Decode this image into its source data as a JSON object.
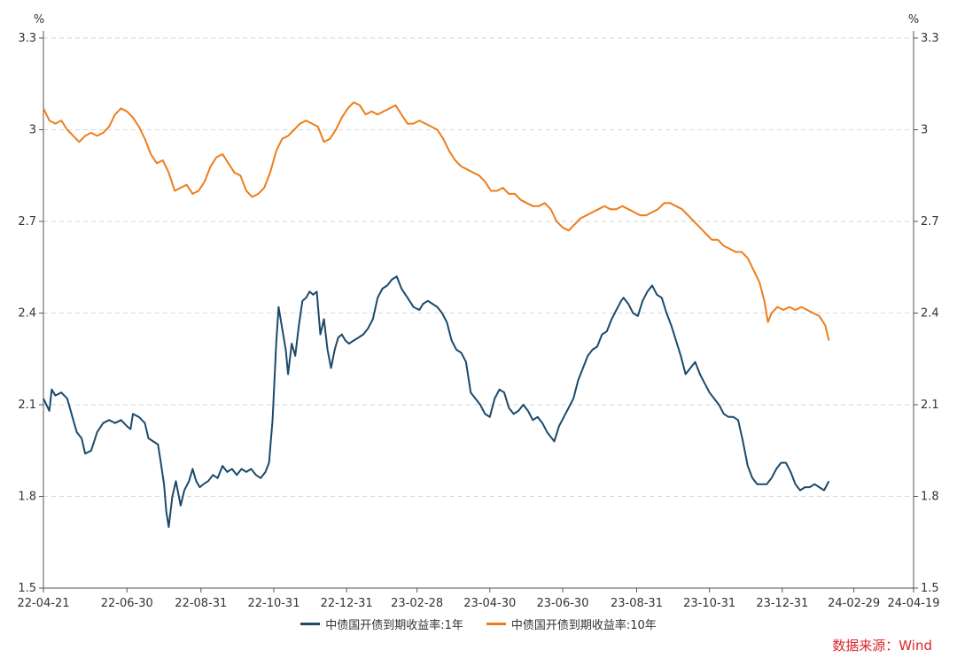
{
  "chart_data": {
    "type": "line",
    "y_unit": "%",
    "ylim": [
      1.5,
      3.3
    ],
    "y_ticks": [
      "1.5",
      "1.8",
      "2.1",
      "2.4",
      "2.7",
      "3",
      "3.3"
    ],
    "x_tick_labels": [
      "22-04-21",
      "22-06-30",
      "22-08-31",
      "22-10-31",
      "22-12-31",
      "23-02-28",
      "23-04-30",
      "23-06-30",
      "23-08-31",
      "23-10-31",
      "23-12-31",
      "24-02-29",
      "24-04-19"
    ],
    "x_tick_positions": [
      0,
      70,
      132,
      193,
      254,
      313,
      374,
      435,
      497,
      558,
      619,
      679,
      729
    ],
    "x_range": [
      0,
      729
    ],
    "series": [
      {
        "name": "中债国开债到期收益率:1年",
        "color": "#1b4a6b",
        "points": [
          [
            0,
            2.12
          ],
          [
            5,
            2.08
          ],
          [
            7,
            2.15
          ],
          [
            10,
            2.13
          ],
          [
            15,
            2.14
          ],
          [
            20,
            2.12
          ],
          [
            25,
            2.05
          ],
          [
            28,
            2.01
          ],
          [
            32,
            1.99
          ],
          [
            35,
            1.94
          ],
          [
            40,
            1.95
          ],
          [
            45,
            2.01
          ],
          [
            50,
            2.04
          ],
          [
            55,
            2.05
          ],
          [
            60,
            2.04
          ],
          [
            65,
            2.05
          ],
          [
            70,
            2.03
          ],
          [
            73,
            2.02
          ],
          [
            75,
            2.07
          ],
          [
            80,
            2.06
          ],
          [
            85,
            2.04
          ],
          [
            88,
            1.99
          ],
          [
            92,
            1.98
          ],
          [
            96,
            1.97
          ],
          [
            98,
            1.92
          ],
          [
            101,
            1.84
          ],
          [
            103,
            1.75
          ],
          [
            105,
            1.7
          ],
          [
            108,
            1.8
          ],
          [
            111,
            1.85
          ],
          [
            115,
            1.77
          ],
          [
            118,
            1.82
          ],
          [
            122,
            1.85
          ],
          [
            125,
            1.89
          ],
          [
            128,
            1.85
          ],
          [
            131,
            1.83
          ],
          [
            134,
            1.84
          ],
          [
            138,
            1.85
          ],
          [
            142,
            1.87
          ],
          [
            146,
            1.86
          ],
          [
            150,
            1.9
          ],
          [
            154,
            1.88
          ],
          [
            158,
            1.89
          ],
          [
            162,
            1.87
          ],
          [
            166,
            1.89
          ],
          [
            170,
            1.88
          ],
          [
            174,
            1.89
          ],
          [
            178,
            1.87
          ],
          [
            182,
            1.86
          ],
          [
            186,
            1.88
          ],
          [
            189,
            1.91
          ],
          [
            192,
            2.05
          ],
          [
            195,
            2.3
          ],
          [
            197,
            2.42
          ],
          [
            200,
            2.35
          ],
          [
            203,
            2.28
          ],
          [
            205,
            2.2
          ],
          [
            208,
            2.3
          ],
          [
            211,
            2.26
          ],
          [
            214,
            2.36
          ],
          [
            217,
            2.44
          ],
          [
            220,
            2.45
          ],
          [
            223,
            2.47
          ],
          [
            226,
            2.46
          ],
          [
            229,
            2.47
          ],
          [
            232,
            2.33
          ],
          [
            235,
            2.38
          ],
          [
            238,
            2.28
          ],
          [
            241,
            2.22
          ],
          [
            244,
            2.28
          ],
          [
            247,
            2.32
          ],
          [
            250,
            2.33
          ],
          [
            253,
            2.31
          ],
          [
            256,
            2.3
          ],
          [
            260,
            2.31
          ],
          [
            264,
            2.32
          ],
          [
            268,
            2.33
          ],
          [
            272,
            2.35
          ],
          [
            276,
            2.38
          ],
          [
            280,
            2.45
          ],
          [
            284,
            2.48
          ],
          [
            288,
            2.49
          ],
          [
            292,
            2.51
          ],
          [
            296,
            2.52
          ],
          [
            300,
            2.48
          ],
          [
            305,
            2.45
          ],
          [
            310,
            2.42
          ],
          [
            315,
            2.41
          ],
          [
            318,
            2.43
          ],
          [
            322,
            2.44
          ],
          [
            326,
            2.43
          ],
          [
            330,
            2.42
          ],
          [
            334,
            2.4
          ],
          [
            338,
            2.37
          ],
          [
            342,
            2.31
          ],
          [
            346,
            2.28
          ],
          [
            350,
            2.27
          ],
          [
            354,
            2.24
          ],
          [
            358,
            2.14
          ],
          [
            362,
            2.12
          ],
          [
            366,
            2.1
          ],
          [
            370,
            2.07
          ],
          [
            374,
            2.06
          ],
          [
            378,
            2.12
          ],
          [
            382,
            2.15
          ],
          [
            386,
            2.14
          ],
          [
            390,
            2.09
          ],
          [
            394,
            2.07
          ],
          [
            398,
            2.08
          ],
          [
            402,
            2.1
          ],
          [
            406,
            2.08
          ],
          [
            410,
            2.05
          ],
          [
            414,
            2.06
          ],
          [
            418,
            2.04
          ],
          [
            422,
            2.01
          ],
          [
            426,
            1.99
          ],
          [
            428,
            1.98
          ],
          [
            432,
            2.03
          ],
          [
            436,
            2.06
          ],
          [
            440,
            2.09
          ],
          [
            444,
            2.12
          ],
          [
            448,
            2.18
          ],
          [
            452,
            2.22
          ],
          [
            456,
            2.26
          ],
          [
            460,
            2.28
          ],
          [
            464,
            2.29
          ],
          [
            468,
            2.33
          ],
          [
            472,
            2.34
          ],
          [
            476,
            2.38
          ],
          [
            480,
            2.41
          ],
          [
            484,
            2.44
          ],
          [
            486,
            2.45
          ],
          [
            490,
            2.43
          ],
          [
            494,
            2.4
          ],
          [
            498,
            2.39
          ],
          [
            502,
            2.44
          ],
          [
            506,
            2.47
          ],
          [
            510,
            2.49
          ],
          [
            514,
            2.46
          ],
          [
            518,
            2.45
          ],
          [
            522,
            2.4
          ],
          [
            526,
            2.36
          ],
          [
            530,
            2.31
          ],
          [
            534,
            2.26
          ],
          [
            538,
            2.2
          ],
          [
            542,
            2.22
          ],
          [
            546,
            2.24
          ],
          [
            550,
            2.2
          ],
          [
            554,
            2.17
          ],
          [
            558,
            2.14
          ],
          [
            562,
            2.12
          ],
          [
            566,
            2.1
          ],
          [
            570,
            2.07
          ],
          [
            574,
            2.06
          ],
          [
            578,
            2.06
          ],
          [
            582,
            2.05
          ],
          [
            586,
            1.98
          ],
          [
            590,
            1.9
          ],
          [
            594,
            1.86
          ],
          [
            598,
            1.84
          ],
          [
            602,
            1.84
          ],
          [
            606,
            1.84
          ],
          [
            610,
            1.86
          ],
          [
            614,
            1.89
          ],
          [
            618,
            1.91
          ],
          [
            622,
            1.91
          ],
          [
            626,
            1.88
          ],
          [
            630,
            1.84
          ],
          [
            634,
            1.82
          ],
          [
            638,
            1.83
          ],
          [
            642,
            1.83
          ],
          [
            646,
            1.84
          ],
          [
            650,
            1.83
          ],
          [
            654,
            1.82
          ],
          [
            658,
            1.85
          ]
        ]
      },
      {
        "name": "中债国开债到期收益率:10年",
        "color": "#ed7d1b",
        "points": [
          [
            0,
            3.07
          ],
          [
            5,
            3.03
          ],
          [
            10,
            3.02
          ],
          [
            15,
            3.03
          ],
          [
            20,
            3.0
          ],
          [
            25,
            2.98
          ],
          [
            30,
            2.96
          ],
          [
            35,
            2.98
          ],
          [
            40,
            2.99
          ],
          [
            45,
            2.98
          ],
          [
            50,
            2.99
          ],
          [
            55,
            3.01
          ],
          [
            60,
            3.05
          ],
          [
            65,
            3.07
          ],
          [
            70,
            3.06
          ],
          [
            75,
            3.04
          ],
          [
            80,
            3.01
          ],
          [
            85,
            2.97
          ],
          [
            90,
            2.92
          ],
          [
            95,
            2.89
          ],
          [
            100,
            2.9
          ],
          [
            105,
            2.86
          ],
          [
            110,
            2.8
          ],
          [
            115,
            2.81
          ],
          [
            120,
            2.82
          ],
          [
            125,
            2.79
          ],
          [
            130,
            2.8
          ],
          [
            135,
            2.83
          ],
          [
            140,
            2.88
          ],
          [
            145,
            2.91
          ],
          [
            150,
            2.92
          ],
          [
            155,
            2.89
          ],
          [
            160,
            2.86
          ],
          [
            165,
            2.85
          ],
          [
            170,
            2.8
          ],
          [
            175,
            2.78
          ],
          [
            180,
            2.79
          ],
          [
            185,
            2.81
          ],
          [
            190,
            2.86
          ],
          [
            195,
            2.93
          ],
          [
            200,
            2.97
          ],
          [
            205,
            2.98
          ],
          [
            210,
            3.0
          ],
          [
            215,
            3.02
          ],
          [
            220,
            3.03
          ],
          [
            225,
            3.02
          ],
          [
            230,
            3.01
          ],
          [
            235,
            2.96
          ],
          [
            240,
            2.97
          ],
          [
            245,
            3.0
          ],
          [
            250,
            3.04
          ],
          [
            255,
            3.07
          ],
          [
            260,
            3.09
          ],
          [
            265,
            3.08
          ],
          [
            270,
            3.05
          ],
          [
            275,
            3.06
          ],
          [
            280,
            3.05
          ],
          [
            285,
            3.06
          ],
          [
            290,
            3.07
          ],
          [
            295,
            3.08
          ],
          [
            300,
            3.05
          ],
          [
            305,
            3.02
          ],
          [
            310,
            3.02
          ],
          [
            315,
            3.03
          ],
          [
            320,
            3.02
          ],
          [
            325,
            3.01
          ],
          [
            330,
            3.0
          ],
          [
            335,
            2.97
          ],
          [
            340,
            2.93
          ],
          [
            345,
            2.9
          ],
          [
            350,
            2.88
          ],
          [
            355,
            2.87
          ],
          [
            360,
            2.86
          ],
          [
            365,
            2.85
          ],
          [
            370,
            2.83
          ],
          [
            375,
            2.8
          ],
          [
            380,
            2.8
          ],
          [
            385,
            2.81
          ],
          [
            390,
            2.79
          ],
          [
            395,
            2.79
          ],
          [
            400,
            2.77
          ],
          [
            405,
            2.76
          ],
          [
            410,
            2.75
          ],
          [
            415,
            2.75
          ],
          [
            420,
            2.76
          ],
          [
            425,
            2.74
          ],
          [
            430,
            2.7
          ],
          [
            435,
            2.68
          ],
          [
            440,
            2.67
          ],
          [
            445,
            2.69
          ],
          [
            450,
            2.71
          ],
          [
            455,
            2.72
          ],
          [
            460,
            2.73
          ],
          [
            465,
            2.74
          ],
          [
            470,
            2.75
          ],
          [
            475,
            2.74
          ],
          [
            480,
            2.74
          ],
          [
            485,
            2.75
          ],
          [
            490,
            2.74
          ],
          [
            495,
            2.73
          ],
          [
            500,
            2.72
          ],
          [
            505,
            2.72
          ],
          [
            510,
            2.73
          ],
          [
            515,
            2.74
          ],
          [
            520,
            2.76
          ],
          [
            525,
            2.76
          ],
          [
            530,
            2.75
          ],
          [
            535,
            2.74
          ],
          [
            540,
            2.72
          ],
          [
            545,
            2.7
          ],
          [
            550,
            2.68
          ],
          [
            555,
            2.66
          ],
          [
            560,
            2.64
          ],
          [
            565,
            2.64
          ],
          [
            570,
            2.62
          ],
          [
            575,
            2.61
          ],
          [
            580,
            2.6
          ],
          [
            585,
            2.6
          ],
          [
            590,
            2.58
          ],
          [
            595,
            2.54
          ],
          [
            600,
            2.5
          ],
          [
            604,
            2.44
          ],
          [
            607,
            2.37
          ],
          [
            610,
            2.4
          ],
          [
            615,
            2.42
          ],
          [
            620,
            2.41
          ],
          [
            625,
            2.42
          ],
          [
            630,
            2.41
          ],
          [
            635,
            2.42
          ],
          [
            640,
            2.41
          ],
          [
            645,
            2.4
          ],
          [
            650,
            2.39
          ],
          [
            655,
            2.36
          ],
          [
            658,
            2.31
          ]
        ]
      }
    ],
    "legend": [
      "中债国开债到期收益率:1年",
      "中债国开债到期收益率:10年"
    ],
    "grid": true,
    "source": "数据来源：Wind"
  }
}
